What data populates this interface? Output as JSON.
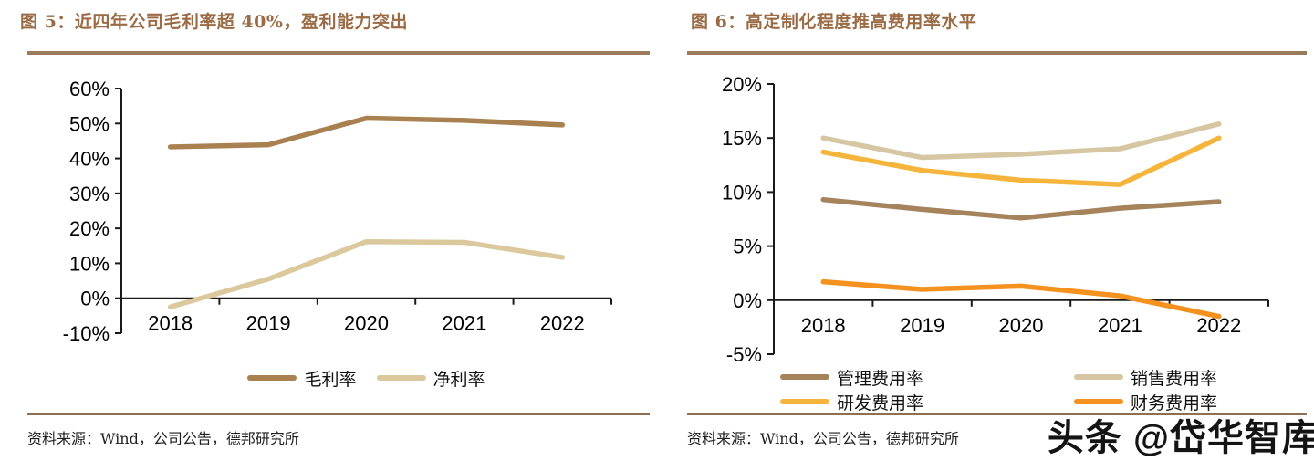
{
  "watermark": {
    "text": "头条 @岱华智库"
  },
  "colors": {
    "title_brown": "#9a6b44",
    "rule_top": "#9a7b5b",
    "rule_bottom": "#8d7052",
    "axis": "#1a1a1a"
  },
  "chart_data": [
    {
      "type": "line",
      "title": "图 5：近四年公司毛利率超 40%，盈利能力突出",
      "source": "资料来源：Wind，公司公告，德邦研究所",
      "categories": [
        "2018",
        "2019",
        "2020",
        "2021",
        "2022"
      ],
      "series": [
        {
          "name": "毛利率",
          "color": "#a9804f",
          "values": [
            43.3,
            43.9,
            51.5,
            50.9,
            49.6
          ]
        },
        {
          "name": "净利率",
          "color": "#dbc89d",
          "values": [
            -2.5,
            5.5,
            16.2,
            16.0,
            11.7
          ]
        }
      ],
      "ylim": [
        -10,
        60
      ],
      "yticks": [
        "60%",
        "50%",
        "40%",
        "30%",
        "20%",
        "10%",
        "0%",
        "-10%"
      ],
      "xlabel": "",
      "ylabel": "",
      "grid": false,
      "legend_position": "bottom"
    },
    {
      "type": "line",
      "title": "图 6：高定制化程度推高费用率水平",
      "source": "资料来源：Wind，公司公告，德邦研究所",
      "categories": [
        "2018",
        "2019",
        "2020",
        "2021",
        "2022"
      ],
      "series": [
        {
          "name": "管理费用率",
          "color": "#a5845c",
          "values": [
            9.3,
            8.4,
            7.6,
            8.5,
            9.1
          ]
        },
        {
          "name": "销售费用率",
          "color": "#d6c7a2",
          "values": [
            15.0,
            13.2,
            13.5,
            14.0,
            16.3
          ]
        },
        {
          "name": "研发费用率",
          "color": "#f5b53c",
          "values": [
            13.7,
            12.0,
            11.1,
            10.7,
            15.0
          ]
        },
        {
          "name": "财务费用率",
          "color": "#f5911e",
          "values": [
            1.7,
            1.0,
            1.3,
            0.4,
            -1.5
          ]
        }
      ],
      "ylim": [
        -5,
        20
      ],
      "yticks": [
        "20%",
        "15%",
        "10%",
        "5%",
        "0%",
        "-5%"
      ],
      "xlabel": "",
      "ylabel": "",
      "grid": false,
      "legend_position": "bottom",
      "legend_columns": 2
    }
  ]
}
